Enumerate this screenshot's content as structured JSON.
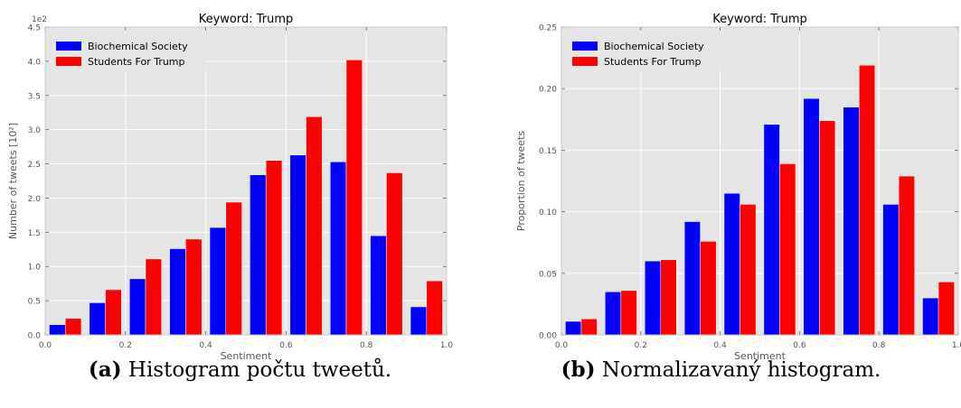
{
  "colors": {
    "series_a": "#0000ff",
    "series_b": "#ff0000",
    "plot_bg": "#e5e5e5",
    "grid": "#ffffff"
  },
  "chart_data": [
    {
      "type": "bar",
      "title": "Keyword: Trump",
      "xlabel": "Sentiment",
      "ylabel": "Number of tweets [10²]",
      "y_multiplier": "1e2",
      "xlim": [
        0.0,
        1.0
      ],
      "ylim": [
        0.0,
        4.5
      ],
      "xticks": [
        "0.0",
        "0.2",
        "0.4",
        "0.6",
        "0.8",
        "1.0"
      ],
      "yticks": [
        "0.0",
        "0.5",
        "1.0",
        "1.5",
        "2.0",
        "2.5",
        "3.0",
        "3.5",
        "4.0",
        "4.5"
      ],
      "grid": true,
      "legend": "top-left",
      "bins": [
        0.1,
        0.2,
        0.3,
        0.4,
        0.5,
        0.6,
        0.7,
        0.8,
        0.9,
        1.0
      ],
      "series": [
        {
          "name": "Biochemical Society",
          "values": [
            0.15,
            0.47,
            0.82,
            1.26,
            1.57,
            2.34,
            2.63,
            2.53,
            1.45,
            0.41
          ]
        },
        {
          "name": "Students For Trump",
          "values": [
            0.24,
            0.66,
            1.11,
            1.4,
            1.94,
            2.55,
            3.19,
            4.02,
            2.37,
            0.79
          ]
        }
      ]
    },
    {
      "type": "bar",
      "title": "Keyword: Trump",
      "xlabel": "Sentiment",
      "ylabel": "Proportion of tweets",
      "xlim": [
        0.0,
        1.0
      ],
      "ylim": [
        0.0,
        0.25
      ],
      "xticks": [
        "0.0",
        "0.2",
        "0.4",
        "0.6",
        "0.8",
        "1.0"
      ],
      "yticks": [
        "0.00",
        "0.05",
        "0.10",
        "0.15",
        "0.20",
        "0.25"
      ],
      "grid": true,
      "legend": "top-left",
      "bins": [
        0.1,
        0.2,
        0.3,
        0.4,
        0.5,
        0.6,
        0.7,
        0.8,
        0.9,
        1.0
      ],
      "series": [
        {
          "name": "Biochemical Society",
          "values": [
            0.011,
            0.035,
            0.06,
            0.092,
            0.115,
            0.171,
            0.192,
            0.185,
            0.106,
            0.03
          ]
        },
        {
          "name": "Students For Trump",
          "values": [
            0.013,
            0.036,
            0.061,
            0.076,
            0.106,
            0.139,
            0.174,
            0.219,
            0.129,
            0.043
          ]
        }
      ]
    }
  ],
  "captions": [
    {
      "label": "(a)",
      "text": "Histogram počtu tweetů."
    },
    {
      "label": "(b)",
      "text": "Normalizavaný histogram."
    }
  ]
}
